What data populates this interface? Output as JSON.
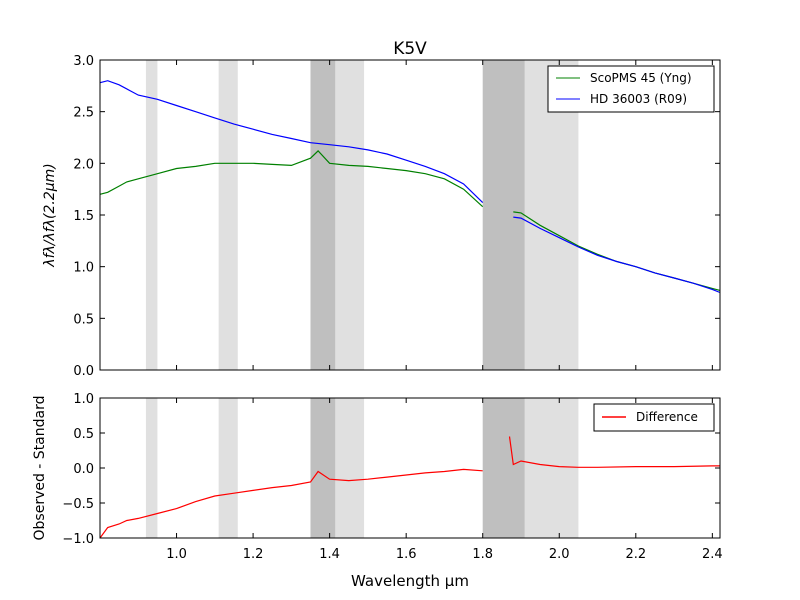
{
  "figure": {
    "title": "K5V",
    "xlabel": "Wavelength μm"
  },
  "chart_data": [
    {
      "type": "line",
      "title": "K5V",
      "xlabel": "",
      "ylabel": "λfλ/λfλ(2.2μm)",
      "xlim": [
        0.8,
        2.42
      ],
      "ylim": [
        0.0,
        3.0
      ],
      "xticks": [
        1.0,
        1.2,
        1.4,
        1.6,
        1.8,
        2.0,
        2.2,
        2.4
      ],
      "yticks": [
        0.0,
        0.5,
        1.0,
        1.5,
        2.0,
        2.5,
        3.0
      ],
      "ytick_labels": [
        "0.0",
        "0.5",
        "1.0",
        "1.5",
        "2.0",
        "2.5",
        "3.0"
      ],
      "legend_position": "top-right",
      "grid": false,
      "shaded_bands": [
        {
          "x0": 0.92,
          "x1": 0.95,
          "shade": "light"
        },
        {
          "x0": 1.11,
          "x1": 1.16,
          "shade": "light"
        },
        {
          "x0": 1.35,
          "x1": 1.415,
          "shade": "dark"
        },
        {
          "x0": 1.415,
          "x1": 1.49,
          "shade": "light"
        },
        {
          "x0": 1.8,
          "x1": 1.91,
          "shade": "dark"
        },
        {
          "x0": 1.91,
          "x1": 2.05,
          "shade": "light"
        }
      ],
      "series": [
        {
          "name": "ScoPMS 45 (Yng)",
          "color": "#008000",
          "x": [
            0.8,
            0.82,
            0.85,
            0.87,
            0.9,
            0.95,
            1.0,
            1.05,
            1.1,
            1.15,
            1.2,
            1.25,
            1.3,
            1.35,
            1.37,
            1.4,
            1.45,
            1.5,
            1.55,
            1.6,
            1.65,
            1.7,
            1.75,
            1.8,
            null,
            1.88,
            1.9,
            1.95,
            2.0,
            2.05,
            2.1,
            2.15,
            2.2,
            2.25,
            2.3,
            2.35,
            2.4,
            2.42
          ],
          "y": [
            1.7,
            1.72,
            1.78,
            1.82,
            1.85,
            1.9,
            1.95,
            1.97,
            2.0,
            2.0,
            2.0,
            1.99,
            1.98,
            2.05,
            2.12,
            2.0,
            1.98,
            1.97,
            1.95,
            1.93,
            1.9,
            1.85,
            1.75,
            1.58,
            null,
            1.53,
            1.52,
            1.4,
            1.3,
            1.2,
            1.12,
            1.05,
            1.0,
            0.94,
            0.89,
            0.84,
            0.79,
            0.77
          ]
        },
        {
          "name": "HD 36003 (R09)",
          "color": "#0000ff",
          "x": [
            0.8,
            0.82,
            0.85,
            0.88,
            0.9,
            0.95,
            1.0,
            1.05,
            1.1,
            1.15,
            1.2,
            1.25,
            1.3,
            1.35,
            1.4,
            1.45,
            1.5,
            1.55,
            1.6,
            1.65,
            1.7,
            1.75,
            1.8,
            null,
            1.88,
            1.9,
            1.95,
            2.0,
            2.05,
            2.1,
            2.15,
            2.2,
            2.25,
            2.3,
            2.35,
            2.4,
            2.42
          ],
          "y": [
            2.78,
            2.8,
            2.76,
            2.7,
            2.66,
            2.62,
            2.56,
            2.5,
            2.44,
            2.38,
            2.33,
            2.28,
            2.24,
            2.2,
            2.18,
            2.16,
            2.13,
            2.09,
            2.03,
            1.97,
            1.9,
            1.8,
            1.62,
            null,
            1.48,
            1.47,
            1.37,
            1.28,
            1.19,
            1.11,
            1.05,
            1.0,
            0.94,
            0.89,
            0.84,
            0.78,
            0.75
          ]
        }
      ]
    },
    {
      "type": "line",
      "title": "",
      "xlabel": "Wavelength μm",
      "ylabel": "Observed - Standard",
      "xlim": [
        0.8,
        2.42
      ],
      "ylim": [
        -1.0,
        1.0
      ],
      "xticks": [
        1.0,
        1.2,
        1.4,
        1.6,
        1.8,
        2.0,
        2.2,
        2.4
      ],
      "xtick_labels": [
        "1.0",
        "1.2",
        "1.4",
        "1.6",
        "1.8",
        "2.0",
        "2.2",
        "2.4"
      ],
      "yticks": [
        -1.0,
        -0.5,
        0.0,
        0.5,
        1.0
      ],
      "ytick_labels": [
        "−1.0",
        "−0.5",
        "0.0",
        "0.5",
        "1.0"
      ],
      "legend_position": "top-right",
      "grid": false,
      "shaded_bands": [
        {
          "x0": 0.92,
          "x1": 0.95,
          "shade": "light"
        },
        {
          "x0": 1.11,
          "x1": 1.16,
          "shade": "light"
        },
        {
          "x0": 1.35,
          "x1": 1.415,
          "shade": "dark"
        },
        {
          "x0": 1.415,
          "x1": 1.49,
          "shade": "light"
        },
        {
          "x0": 1.8,
          "x1": 1.91,
          "shade": "dark"
        },
        {
          "x0": 1.91,
          "x1": 2.05,
          "shade": "light"
        }
      ],
      "series": [
        {
          "name": "Difference",
          "color": "#ff0000",
          "x": [
            0.8,
            0.82,
            0.85,
            0.87,
            0.9,
            0.95,
            1.0,
            1.05,
            1.1,
            1.15,
            1.2,
            1.25,
            1.3,
            1.35,
            1.37,
            1.4,
            1.45,
            1.5,
            1.55,
            1.6,
            1.65,
            1.7,
            1.75,
            1.8,
            null,
            1.87,
            1.88,
            1.9,
            1.95,
            2.0,
            2.05,
            2.1,
            2.2,
            2.3,
            2.4,
            2.42
          ],
          "y": [
            -1.0,
            -0.85,
            -0.8,
            -0.75,
            -0.72,
            -0.65,
            -0.58,
            -0.48,
            -0.4,
            -0.36,
            -0.32,
            -0.28,
            -0.25,
            -0.2,
            -0.05,
            -0.16,
            -0.18,
            -0.16,
            -0.13,
            -0.1,
            -0.07,
            -0.05,
            -0.02,
            -0.04,
            null,
            0.45,
            0.05,
            0.1,
            0.05,
            0.02,
            0.01,
            0.01,
            0.02,
            0.02,
            0.03,
            0.03
          ]
        }
      ]
    }
  ]
}
